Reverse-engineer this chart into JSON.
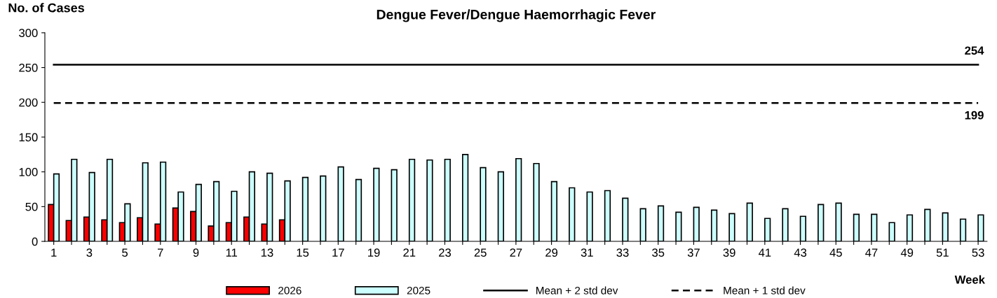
{
  "chart_data": {
    "type": "bar",
    "title": "Dengue Fever/Dengue Haemorrhagic Fever",
    "ylabel": "No. of Cases",
    "xlabel": "Week",
    "categories": [
      "1",
      null,
      "3",
      null,
      "5",
      null,
      "7",
      null,
      "9",
      null,
      "11",
      null,
      "13",
      null,
      "15",
      null,
      "17",
      null,
      "19",
      null,
      "21",
      null,
      "23",
      null,
      "25",
      null,
      "27",
      null,
      "29",
      null,
      "31",
      null,
      "33",
      null,
      "35",
      null,
      "37",
      null,
      "39",
      null,
      "41",
      null,
      "43",
      null,
      "45",
      null,
      "47",
      null,
      "49",
      null,
      "51",
      null,
      "53"
    ],
    "series": [
      {
        "name": "2026",
        "color": "#ff0000",
        "values": [
          53,
          30,
          35,
          31,
          27,
          34,
          25,
          48,
          43,
          22,
          27,
          35,
          25,
          31,
          null,
          null,
          null,
          null,
          null,
          null,
          null,
          null,
          null,
          null,
          null,
          null,
          null,
          null,
          null,
          null,
          null,
          null,
          null,
          null,
          null,
          null,
          null,
          null,
          null,
          null,
          null,
          null,
          null,
          null,
          null,
          null,
          null,
          null,
          null,
          null,
          null,
          null,
          null
        ]
      },
      {
        "name": "2025",
        "color": "#ccffff",
        "values": [
          97,
          118,
          99,
          118,
          54,
          113,
          114,
          71,
          82,
          86,
          72,
          100,
          98,
          87,
          92,
          94,
          107,
          89,
          105,
          103,
          118,
          117,
          118,
          125,
          106,
          100,
          119,
          112,
          86,
          77,
          71,
          73,
          62,
          47,
          51,
          42,
          49,
          45,
          40,
          55,
          33,
          47,
          36,
          53,
          55,
          39,
          39,
          27,
          38,
          46,
          41,
          32,
          38
        ]
      },
      {
        "name": "Mean + 2 std dev",
        "type": "line",
        "color": "#000000",
        "line_style": "solid",
        "values": [
          254,
          254,
          254,
          254,
          254,
          254,
          254,
          254,
          254,
          254,
          254,
          254,
          254,
          254,
          254,
          254,
          254,
          254,
          254,
          254,
          254,
          254,
          254,
          254,
          254,
          254,
          254,
          254,
          254,
          254,
          254,
          254,
          254,
          254,
          254,
          254,
          254,
          254,
          254,
          254,
          254,
          254,
          254,
          254,
          254,
          254,
          254,
          254,
          254,
          254,
          254,
          254,
          254
        ],
        "value_labels": [
          null,
          null,
          null,
          null,
          null,
          null,
          null,
          null,
          null,
          null,
          null,
          null,
          null,
          null,
          null,
          null,
          null,
          null,
          null,
          null,
          null,
          null,
          null,
          null,
          null,
          null,
          null,
          null,
          null,
          null,
          null,
          null,
          null,
          null,
          null,
          null,
          null,
          null,
          null,
          null,
          null,
          null,
          null,
          null,
          null,
          null,
          null,
          null,
          null,
          null,
          null,
          null,
          "254"
        ]
      },
      {
        "name": "Mean + 1 std dev",
        "type": "line",
        "color": "#000000",
        "line_style": "dashed",
        "values": [
          199,
          199,
          199,
          199,
          199,
          199,
          199,
          199,
          199,
          199,
          199,
          199,
          199,
          199,
          199,
          199,
          199,
          199,
          199,
          199,
          199,
          199,
          199,
          199,
          199,
          199,
          199,
          199,
          199,
          199,
          199,
          199,
          199,
          199,
          199,
          199,
          199,
          199,
          199,
          199,
          199,
          199,
          199,
          199,
          199,
          199,
          199,
          199,
          199,
          199,
          199,
          199,
          199
        ],
        "value_labels": [
          null,
          null,
          null,
          null,
          null,
          null,
          null,
          null,
          null,
          null,
          null,
          null,
          null,
          null,
          null,
          null,
          null,
          null,
          null,
          null,
          null,
          null,
          null,
          null,
          null,
          null,
          null,
          null,
          null,
          null,
          null,
          null,
          null,
          null,
          null,
          null,
          null,
          null,
          null,
          null,
          null,
          null,
          null,
          null,
          null,
          null,
          null,
          null,
          null,
          null,
          null,
          null,
          "199"
        ]
      }
    ],
    "ylim": [
      0,
      300
    ],
    "yticks": [
      0,
      50,
      100,
      150,
      200,
      250,
      300
    ],
    "grid": false,
    "legend": "bottom"
  }
}
